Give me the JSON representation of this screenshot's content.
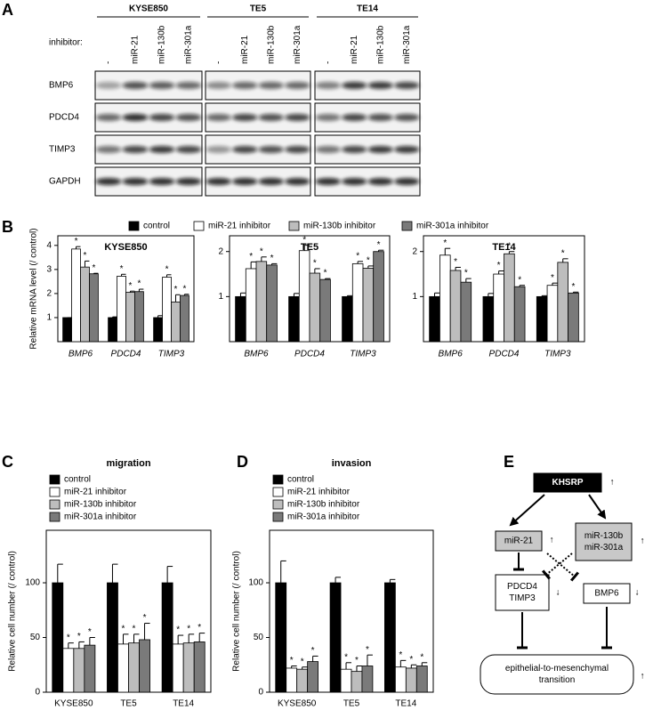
{
  "panel_labels": [
    "A",
    "B",
    "C",
    "D",
    "E"
  ],
  "panel_a": {
    "groups": [
      "KYSE850",
      "TE5",
      "TE14"
    ],
    "inhibitor_label": "inhibitor:",
    "lanes": [
      "-",
      "miR-21",
      "miR-130b",
      "miR-301a"
    ],
    "rows": [
      "BMP6",
      "PDCD4",
      "TIMP3",
      "GAPDH"
    ]
  },
  "chart_data": [
    {
      "type": "bar",
      "title": "KYSE850",
      "ylabel": "Relative mRNA level (/ control)",
      "categories": [
        "BMP6",
        "PDCD4",
        "TIMP3"
      ],
      "series": [
        {
          "name": "control",
          "color": "#000000",
          "values": [
            1,
            1,
            1
          ],
          "errors": [
            0,
            0.03,
            0.08
          ],
          "significance": [
            null,
            null,
            null
          ]
        },
        {
          "name": "miR-21 inhibitor",
          "color": "#ffffff",
          "values": [
            3.85,
            2.72,
            2.68
          ],
          "errors": [
            0.1,
            0.08,
            0.1
          ],
          "significance": [
            "*",
            "*",
            "*"
          ]
        },
        {
          "name": "miR-130b inhibitor",
          "color": "#bdbdbd",
          "values": [
            3.1,
            2.05,
            1.65
          ],
          "errors": [
            0.25,
            0.05,
            0.3
          ],
          "significance": [
            "*",
            "*",
            "*"
          ]
        },
        {
          "name": "miR-301a inhibitor",
          "color": "#7a7a7a",
          "values": [
            2.82,
            2.08,
            1.92
          ],
          "errors": [
            0.02,
            0.1,
            0.05
          ],
          "significance": [
            "*",
            "*",
            "*"
          ]
        }
      ],
      "ylim": [
        0,
        4.4
      ],
      "yticks": [
        1,
        2,
        3,
        4
      ]
    },
    {
      "type": "bar",
      "title": "TE5",
      "categories": [
        "BMP6",
        "PDCD4",
        "TIMP3"
      ],
      "series": [
        {
          "color": "#000000",
          "values": [
            1,
            1,
            1
          ],
          "errors": [
            0.08,
            0.07,
            0.02
          ],
          "significance": [
            null,
            null,
            null
          ]
        },
        {
          "color": "#ffffff",
          "values": [
            1.62,
            2.02,
            1.73
          ],
          "errors": [
            0.15,
            0.12,
            0.05
          ],
          "significance": [
            "*",
            "*",
            "*"
          ]
        },
        {
          "color": "#bdbdbd",
          "values": [
            1.78,
            1.52,
            1.63
          ],
          "errors": [
            0.1,
            0.1,
            0.05
          ],
          "significance": [
            "*",
            "*",
            "*"
          ]
        },
        {
          "color": "#7a7a7a",
          "values": [
            1.7,
            1.38,
            2.0
          ],
          "errors": [
            0.03,
            0.02,
            0.03
          ],
          "significance": [
            "*",
            "*",
            "*"
          ]
        }
      ],
      "ylim": [
        0,
        2.35
      ],
      "yticks": [
        1,
        2
      ]
    },
    {
      "type": "bar",
      "title": "TE14",
      "categories": [
        "BMP6",
        "PDCD4",
        "TIMP3"
      ],
      "series": [
        {
          "color": "#000000",
          "values": [
            1,
            1,
            1
          ],
          "errors": [
            0.08,
            0.07,
            0.02
          ],
          "significance": [
            null,
            null,
            null
          ]
        },
        {
          "color": "#ffffff",
          "values": [
            1.92,
            1.5,
            1.25
          ],
          "errors": [
            0.15,
            0.07,
            0.05
          ],
          "significance": [
            "*",
            "*",
            "*"
          ]
        },
        {
          "color": "#bdbdbd",
          "values": [
            1.58,
            1.95,
            1.76
          ],
          "errors": [
            0.07,
            0.05,
            0.08
          ],
          "significance": [
            "*",
            "*",
            "*"
          ]
        },
        {
          "color": "#7a7a7a",
          "values": [
            1.32,
            1.22,
            1.08
          ],
          "errors": [
            0.08,
            0.03,
            0.02
          ],
          "significance": [
            "*",
            "*",
            "*"
          ]
        }
      ],
      "ylim": [
        0,
        2.35
      ],
      "yticks": [
        1,
        2
      ]
    },
    {
      "type": "bar",
      "title": "migration",
      "ylabel": "Relative cell number (/ control)",
      "categories": [
        "KYSE850",
        "TE5",
        "TE14"
      ],
      "series": [
        {
          "name": "control",
          "color": "#000000",
          "values": [
            100,
            100,
            100
          ],
          "errors": [
            17,
            17,
            15
          ],
          "significance": [
            null,
            null,
            null
          ]
        },
        {
          "name": "miR-21 inhibitor",
          "color": "#ffffff",
          "values": [
            40,
            44,
            44
          ],
          "errors": [
            5,
            9,
            8
          ],
          "significance": [
            "*",
            "*",
            "*"
          ]
        },
        {
          "name": "miR-130b inhibitor",
          "color": "#bdbdbd",
          "values": [
            40,
            45,
            45
          ],
          "errors": [
            6,
            8,
            8
          ],
          "significance": [
            "*",
            "*",
            "*"
          ]
        },
        {
          "name": "miR-301a inhibitor",
          "color": "#7a7a7a",
          "values": [
            43,
            48,
            46
          ],
          "errors": [
            7,
            15,
            8
          ],
          "significance": [
            "*",
            "*",
            "*"
          ]
        }
      ],
      "ylim": [
        0,
        148
      ],
      "yticks": [
        0,
        50,
        100
      ]
    },
    {
      "type": "bar",
      "title": "invasion",
      "ylabel": "Relative cell number (/ control)",
      "categories": [
        "KYSE850",
        "TE5",
        "TE14"
      ],
      "series": [
        {
          "name": "control",
          "color": "#000000",
          "values": [
            100,
            100,
            100
          ],
          "errors": [
            20,
            5,
            3
          ],
          "significance": [
            null,
            null,
            null
          ]
        },
        {
          "name": "miR-21 inhibitor",
          "color": "#ffffff",
          "values": [
            22,
            21,
            23
          ],
          "errors": [
            2,
            6,
            6
          ],
          "significance": [
            "*",
            "*",
            "*"
          ]
        },
        {
          "name": "miR-130b inhibitor",
          "color": "#bdbdbd",
          "values": [
            21,
            19,
            22
          ],
          "errors": [
            2,
            5,
            3
          ],
          "significance": [
            "*",
            "*",
            "*"
          ]
        },
        {
          "name": "miR-301a inhibitor",
          "color": "#7a7a7a",
          "values": [
            28,
            24,
            24
          ],
          "errors": [
            5,
            10,
            3
          ],
          "significance": [
            "*",
            "*",
            "*"
          ]
        }
      ],
      "ylim": [
        0,
        148
      ],
      "yticks": [
        0,
        50,
        100
      ]
    }
  ],
  "panel_e": {
    "nodes": [
      {
        "lines": [
          "KHSRP"
        ],
        "change": "↑"
      },
      {
        "lines": [
          "miR-21"
        ],
        "change": "↑"
      },
      {
        "lines": [
          "miR-130b",
          "miR-301a"
        ],
        "change": "↑"
      },
      {
        "lines": [
          "PDCD4",
          "TIMP3"
        ],
        "change": "↓"
      },
      {
        "lines": [
          "BMP6"
        ],
        "change": "↓"
      },
      {
        "lines": [
          "epithelial-to-mesenchymal",
          "transition"
        ],
        "change": "↑"
      }
    ]
  }
}
